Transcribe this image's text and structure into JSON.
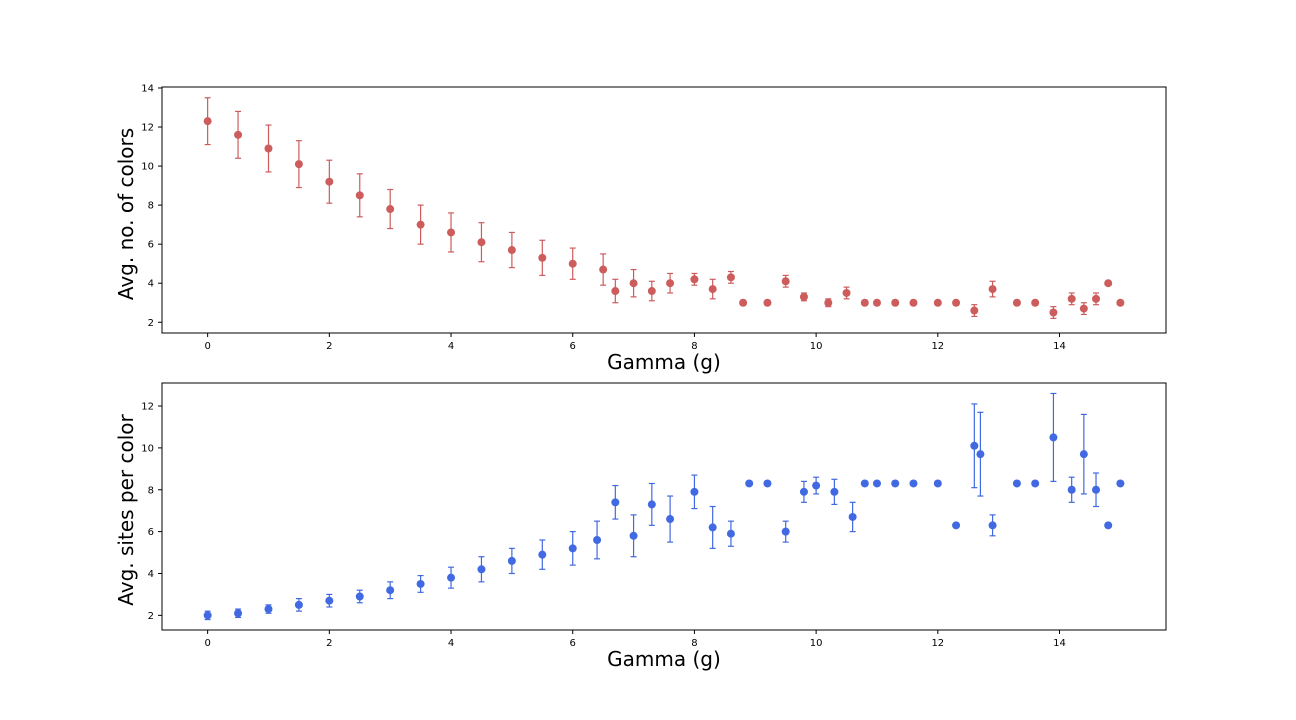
{
  "chart_data": [
    {
      "type": "scatter",
      "error_bars": true,
      "title": "",
      "xlabel": "Gamma (g)",
      "ylabel": "Avg. no. of colors",
      "xlim": [
        -0.75,
        15.75
      ],
      "ylim": [
        1.45,
        14.05
      ],
      "xticks": [
        0,
        2,
        4,
        6,
        8,
        10,
        12,
        14
      ],
      "yticks": [
        2,
        4,
        6,
        8,
        10,
        12,
        14
      ],
      "color": "#cd5c5c",
      "series": [
        {
          "name": "colors",
          "x": [
            0,
            0.5,
            1,
            1.5,
            2,
            2.5,
            3,
            3.5,
            4,
            4.5,
            5,
            5.5,
            6,
            6.5,
            6.7,
            7,
            7.3,
            7.6,
            8,
            8.3,
            8.6,
            8.8,
            9.2,
            9.5,
            9.8,
            10.2,
            10.5,
            10.8,
            11.0,
            11.3,
            11.6,
            12.0,
            12.3,
            12.6,
            12.9,
            13.3,
            13.6,
            13.9,
            14.2,
            14.4,
            14.6,
            14.8,
            15.0
          ],
          "y": [
            12.3,
            11.6,
            10.9,
            10.1,
            9.2,
            8.5,
            7.8,
            7.0,
            6.6,
            6.1,
            5.7,
            5.3,
            5.0,
            4.7,
            3.6,
            4.0,
            3.6,
            4.0,
            4.2,
            3.7,
            4.3,
            3.0,
            3.0,
            4.1,
            3.3,
            3.0,
            3.5,
            3.0,
            3.0,
            3.0,
            3.0,
            3.0,
            3.0,
            2.6,
            3.7,
            3.0,
            3.0,
            2.5,
            3.2,
            2.7,
            3.2,
            4.0,
            3.0
          ],
          "err": [
            1.2,
            1.2,
            1.2,
            1.2,
            1.1,
            1.1,
            1.0,
            1.0,
            1.0,
            1.0,
            0.9,
            0.9,
            0.8,
            0.8,
            0.6,
            0.7,
            0.5,
            0.5,
            0.3,
            0.5,
            0.3,
            0.1,
            0.1,
            0.3,
            0.2,
            0.2,
            0.3,
            0.1,
            0.1,
            0.1,
            0.1,
            0.1,
            0.1,
            0.3,
            0.4,
            0.1,
            0.1,
            0.3,
            0.3,
            0.3,
            0.3,
            0.1,
            0.1
          ]
        }
      ]
    },
    {
      "type": "scatter",
      "error_bars": true,
      "title": "",
      "xlabel": "Gamma (g)",
      "ylabel": "Avg. sites per color",
      "xlim": [
        -0.75,
        15.75
      ],
      "ylim": [
        1.3,
        13.1
      ],
      "xticks": [
        0,
        2,
        4,
        6,
        8,
        10,
        12,
        14
      ],
      "yticks": [
        2,
        4,
        6,
        8,
        10,
        12
      ],
      "color": "#4169e1",
      "series": [
        {
          "name": "sites",
          "x": [
            0,
            0.5,
            1,
            1.5,
            2,
            2.5,
            3,
            3.5,
            4,
            4.5,
            5,
            5.5,
            6,
            6.4,
            6.7,
            7.0,
            7.3,
            7.6,
            8.0,
            8.3,
            8.6,
            8.9,
            9.2,
            9.5,
            9.8,
            10.0,
            10.3,
            10.6,
            10.8,
            11.0,
            11.3,
            11.6,
            12.0,
            12.3,
            12.6,
            12.7,
            12.9,
            13.3,
            13.6,
            13.9,
            14.2,
            14.4,
            14.6,
            14.8,
            15.0
          ],
          "y": [
            2.0,
            2.1,
            2.3,
            2.5,
            2.7,
            2.9,
            3.2,
            3.5,
            3.8,
            4.2,
            4.6,
            4.9,
            5.2,
            5.6,
            7.4,
            5.8,
            7.3,
            6.6,
            7.9,
            6.2,
            5.9,
            8.3,
            8.3,
            6.0,
            7.9,
            8.2,
            7.9,
            6.7,
            8.3,
            8.3,
            8.3,
            8.3,
            8.3,
            6.3,
            10.1,
            9.7,
            6.3,
            8.3,
            8.3,
            10.5,
            8.0,
            9.7,
            8.0,
            6.3,
            8.3
          ],
          "err": [
            0.2,
            0.2,
            0.2,
            0.3,
            0.3,
            0.3,
            0.4,
            0.4,
            0.5,
            0.6,
            0.6,
            0.7,
            0.8,
            0.9,
            0.8,
            1.0,
            1.0,
            1.1,
            0.8,
            1.0,
            0.6,
            0.1,
            0.1,
            0.5,
            0.5,
            0.4,
            0.6,
            0.7,
            0.1,
            0.1,
            0.1,
            0.1,
            0.1,
            0.1,
            2.0,
            2.0,
            0.5,
            0.1,
            0.1,
            2.1,
            0.6,
            1.9,
            0.8,
            0.1,
            0.1
          ]
        }
      ]
    }
  ]
}
